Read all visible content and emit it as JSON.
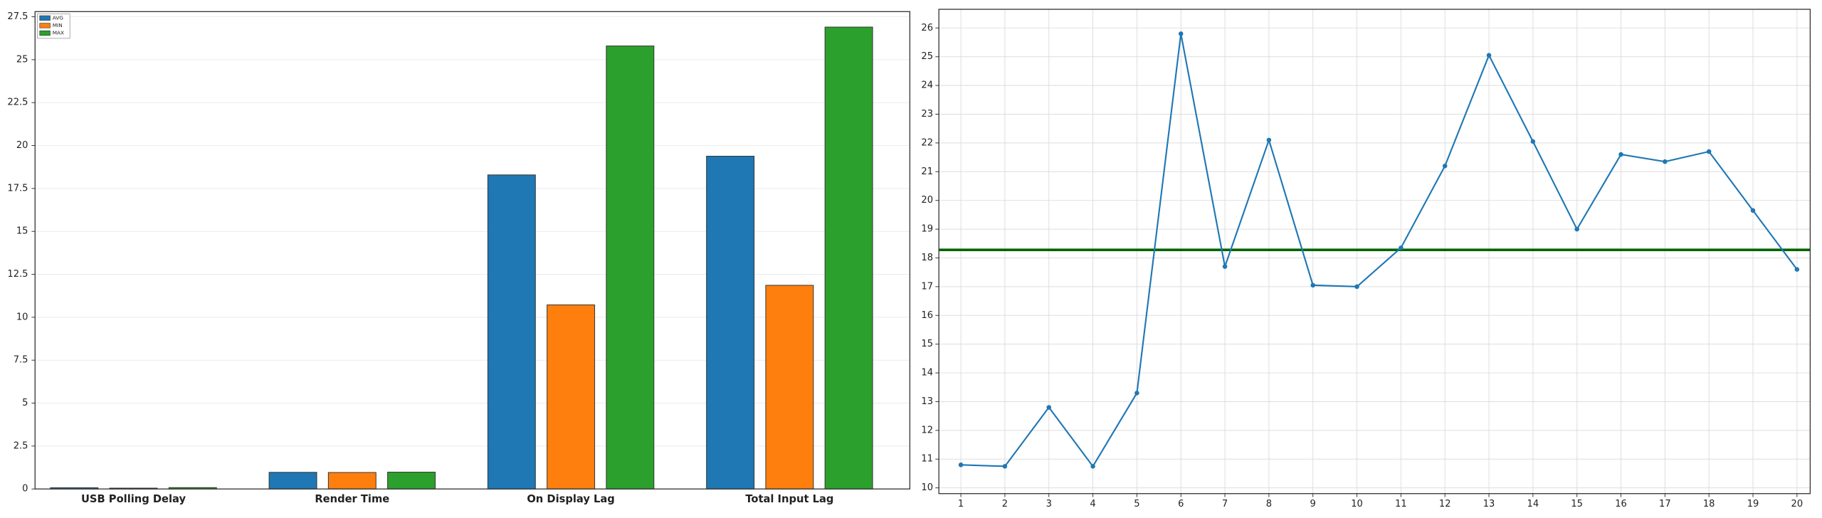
{
  "chart_data": [
    {
      "type": "bar",
      "categories": [
        "USB Polling Delay",
        "Render Time",
        "On Display Lag",
        "Total Input Lag"
      ],
      "series": [
        {
          "name": "AVG",
          "color": "#1f77b4",
          "values": [
            0.07,
            0.97,
            18.29,
            19.38
          ]
        },
        {
          "name": "MIN",
          "color": "#ff7f0e",
          "values": [
            0.05,
            0.96,
            10.72,
            11.86
          ]
        },
        {
          "name": "MAX",
          "color": "#2ca02c",
          "values": [
            0.08,
            0.98,
            25.8,
            26.9
          ]
        }
      ],
      "ylim": [
        0,
        27.8
      ],
      "yticks": [
        0,
        2.5,
        5,
        7.5,
        10,
        12.5,
        15,
        17.5,
        20,
        22.5,
        25,
        27.5
      ],
      "grid": true,
      "legend": "upper-left"
    },
    {
      "type": "line",
      "x": [
        1,
        2,
        3,
        4,
        5,
        6,
        7,
        8,
        9,
        10,
        11,
        12,
        13,
        14,
        15,
        16,
        17,
        18,
        19,
        20
      ],
      "series": [
        {
          "color": "#1f77b4",
          "values": [
            10.8,
            10.75,
            12.8,
            10.75,
            13.3,
            25.8,
            17.7,
            22.1,
            17.05,
            17.0,
            18.35,
            21.2,
            25.05,
            22.05,
            19.0,
            21.6,
            21.35,
            21.7,
            19.65,
            17.6
          ]
        }
      ],
      "hline": {
        "value": 18.28,
        "color": "#006400"
      },
      "xlim": [
        0.5,
        20.3
      ],
      "ylim": [
        9.8,
        26.65
      ],
      "xticks": [
        1,
        2,
        3,
        4,
        5,
        6,
        7,
        8,
        9,
        10,
        11,
        12,
        13,
        14,
        15,
        16,
        17,
        18,
        19,
        20
      ],
      "yticks": [
        10,
        11,
        12,
        13,
        14,
        15,
        16,
        17,
        18,
        19,
        20,
        21,
        22,
        23,
        24,
        25,
        26
      ],
      "grid": true
    }
  ]
}
